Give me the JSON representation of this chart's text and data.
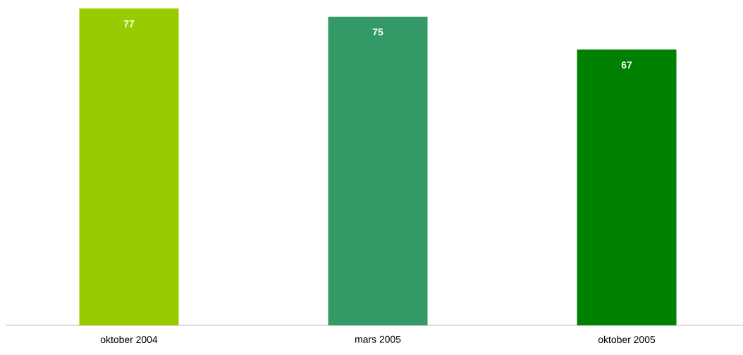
{
  "chart_data": {
    "type": "bar",
    "categories": [
      "oktober 2004",
      "mars 2005",
      "oktober 2005"
    ],
    "values": [
      77,
      75,
      67
    ],
    "colors": [
      "#99cc00",
      "#339966",
      "#008000"
    ],
    "data_labels": true
  }
}
